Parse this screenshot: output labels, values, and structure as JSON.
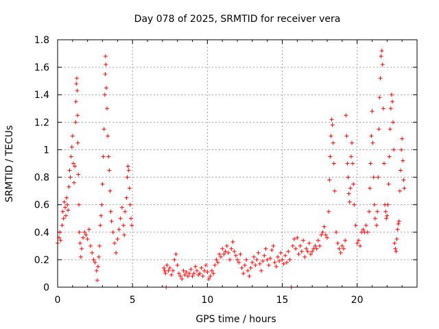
{
  "chart_data": {
    "type": "scatter",
    "title": "Day 078 of 2025, SRMTID for receiver vera",
    "xlabel": "GPS time / hours",
    "ylabel": "SRMTID / TECUs",
    "xlim": [
      0,
      24
    ],
    "ylim": [
      0,
      1.8
    ],
    "x_ticks": [
      0,
      5,
      10,
      15,
      20
    ],
    "x_tick_labels": [
      "0",
      "5",
      "10",
      "15",
      "20"
    ],
    "y_ticks": [
      0,
      0.2,
      0.4,
      0.6,
      0.8,
      1.0,
      1.2,
      1.4,
      1.6,
      1.8
    ],
    "y_tick_labels": [
      "0",
      "0.2",
      "0.4",
      "0.6",
      "0.8",
      "1",
      "1.2",
      "1.4",
      "1.6",
      "1.8"
    ],
    "grid": true,
    "marker": "+",
    "marker_color": "#ff0000",
    "series": [
      {
        "name": "SRMTID",
        "points": [
          [
            0.0,
            0.32
          ],
          [
            0.1,
            0.36
          ],
          [
            0.15,
            0.4
          ],
          [
            0.2,
            0.34
          ],
          [
            0.3,
            0.45
          ],
          [
            0.35,
            0.55
          ],
          [
            0.4,
            0.5
          ],
          [
            0.45,
            0.62
          ],
          [
            0.5,
            0.58
          ],
          [
            0.55,
            0.52
          ],
          [
            0.6,
            0.65
          ],
          [
            0.65,
            0.6
          ],
          [
            0.7,
            0.56
          ],
          [
            0.75,
            0.73
          ],
          [
            0.8,
            0.85
          ],
          [
            0.85,
            0.8
          ],
          [
            0.9,
            0.95
          ],
          [
            0.95,
            1.02
          ],
          [
            1.0,
            1.1
          ],
          [
            1.05,
            0.9
          ],
          [
            1.1,
            0.76
          ],
          [
            1.15,
            0.88
          ],
          [
            1.2,
            1.2
          ],
          [
            1.22,
            1.35
          ],
          [
            1.25,
            1.48
          ],
          [
            1.28,
            1.52
          ],
          [
            1.3,
            1.43
          ],
          [
            1.33,
            1.25
          ],
          [
            1.35,
            1.05
          ],
          [
            1.38,
            0.82
          ],
          [
            1.42,
            0.6
          ],
          [
            1.45,
            0.4
          ],
          [
            1.5,
            0.32
          ],
          [
            1.55,
            0.22
          ],
          [
            1.6,
            0.28
          ],
          [
            1.7,
            0.36
          ],
          [
            1.8,
            0.4
          ],
          [
            1.9,
            0.38
          ],
          [
            2.0,
            0.35
          ],
          [
            2.1,
            0.42
          ],
          [
            2.2,
            0.3
          ],
          [
            2.3,
            0.25
          ],
          [
            2.4,
            0.2
          ],
          [
            2.5,
            0.18
          ],
          [
            2.6,
            0.12
          ],
          [
            2.65,
            0.05
          ],
          [
            2.7,
            0.15
          ],
          [
            2.75,
            0.22
          ],
          [
            2.8,
            0.3
          ],
          [
            2.85,
            0.45
          ],
          [
            2.9,
            0.52
          ],
          [
            2.95,
            0.6
          ],
          [
            3.0,
            0.75
          ],
          [
            3.05,
            0.95
          ],
          [
            3.1,
            1.15
          ],
          [
            3.15,
            1.4
          ],
          [
            3.18,
            1.55
          ],
          [
            3.2,
            1.68
          ],
          [
            3.22,
            1.62
          ],
          [
            3.25,
            1.45
          ],
          [
            3.3,
            1.3
          ],
          [
            3.35,
            1.1
          ],
          [
            3.4,
            0.95
          ],
          [
            3.45,
            0.85
          ],
          [
            3.5,
            0.7
          ],
          [
            3.55,
            0.55
          ],
          [
            3.6,
            0.48
          ],
          [
            3.7,
            0.4
          ],
          [
            3.8,
            0.32
          ],
          [
            3.9,
            0.25
          ],
          [
            4.0,
            0.35
          ],
          [
            4.1,
            0.42
          ],
          [
            4.2,
            0.5
          ],
          [
            4.3,
            0.58
          ],
          [
            4.4,
            0.45
          ],
          [
            4.45,
            0.38
          ],
          [
            4.5,
            0.55
          ],
          [
            4.6,
            0.65
          ],
          [
            4.65,
            0.8
          ],
          [
            4.7,
            0.88
          ],
          [
            4.75,
            0.85
          ],
          [
            4.8,
            0.72
          ],
          [
            4.85,
            0.6
          ],
          [
            4.9,
            0.5
          ],
          [
            4.95,
            0.45
          ],
          [
            7.1,
            0.14
          ],
          [
            7.15,
            0.12
          ],
          [
            7.2,
            0.1
          ],
          [
            7.25,
            0.0
          ],
          [
            7.3,
            0.16
          ],
          [
            7.4,
            0.12
          ],
          [
            7.5,
            0.14
          ],
          [
            7.6,
            0.09
          ],
          [
            7.7,
            0.12
          ],
          [
            7.8,
            0.2
          ],
          [
            7.9,
            0.24
          ],
          [
            8.0,
            0.16
          ],
          [
            8.1,
            0.1
          ],
          [
            8.2,
            0.08
          ],
          [
            8.3,
            0.06
          ],
          [
            8.4,
            0.12
          ],
          [
            8.5,
            0.09
          ],
          [
            8.6,
            0.11
          ],
          [
            8.7,
            0.08
          ],
          [
            8.8,
            0.1
          ],
          [
            8.9,
            0.13
          ],
          [
            9.0,
            0.08
          ],
          [
            9.1,
            0.1
          ],
          [
            9.2,
            0.15
          ],
          [
            9.3,
            0.12
          ],
          [
            9.4,
            0.09
          ],
          [
            9.5,
            0.1
          ],
          [
            9.6,
            0.14
          ],
          [
            9.7,
            0.08
          ],
          [
            9.8,
            0.12
          ],
          [
            9.9,
            0.16
          ],
          [
            10.0,
            0.11
          ],
          [
            10.1,
            0.06
          ],
          [
            10.2,
            0.08
          ],
          [
            10.3,
            0.12
          ],
          [
            10.4,
            0.1
          ],
          [
            10.5,
            0.16
          ],
          [
            10.6,
            0.2
          ],
          [
            10.7,
            0.18
          ],
          [
            10.8,
            0.24
          ],
          [
            10.9,
            0.22
          ],
          [
            11.0,
            0.28
          ],
          [
            11.1,
            0.24
          ],
          [
            11.2,
            0.26
          ],
          [
            11.3,
            0.3
          ],
          [
            11.4,
            0.25
          ],
          [
            11.5,
            0.2
          ],
          [
            11.6,
            0.28
          ],
          [
            11.7,
            0.33
          ],
          [
            11.8,
            0.26
          ],
          [
            11.9,
            0.23
          ],
          [
            12.0,
            0.2
          ],
          [
            12.1,
            0.18
          ],
          [
            12.2,
            0.24
          ],
          [
            12.3,
            0.14
          ],
          [
            12.4,
            0.1
          ],
          [
            12.5,
            0.16
          ],
          [
            12.6,
            0.2
          ],
          [
            12.7,
            0.12
          ],
          [
            12.8,
            0.08
          ],
          [
            12.9,
            0.14
          ],
          [
            13.0,
            0.18
          ],
          [
            13.1,
            0.22
          ],
          [
            13.2,
            0.16
          ],
          [
            13.3,
            0.2
          ],
          [
            13.4,
            0.25
          ],
          [
            13.5,
            0.17
          ],
          [
            13.6,
            0.12
          ],
          [
            13.7,
            0.19
          ],
          [
            13.8,
            0.23
          ],
          [
            13.9,
            0.28
          ],
          [
            14.0,
            0.2
          ],
          [
            14.1,
            0.16
          ],
          [
            14.2,
            0.21
          ],
          [
            14.3,
            0.27
          ],
          [
            14.4,
            0.3
          ],
          [
            14.5,
            0.18
          ],
          [
            14.6,
            0.15
          ],
          [
            14.7,
            0.22
          ],
          [
            14.8,
            0.19
          ],
          [
            14.9,
            0.25
          ],
          [
            15.0,
            0.2
          ],
          [
            15.1,
            0.17
          ],
          [
            15.2,
            0.23
          ],
          [
            15.3,
            0.18
          ],
          [
            15.4,
            0.26
          ],
          [
            15.5,
            0.2
          ],
          [
            15.6,
            0.0
          ],
          [
            15.7,
            0.3
          ],
          [
            15.8,
            0.35
          ],
          [
            15.9,
            0.28
          ],
          [
            16.0,
            0.36
          ],
          [
            16.1,
            0.24
          ],
          [
            16.2,
            0.3
          ],
          [
            16.3,
            0.26
          ],
          [
            16.4,
            0.34
          ],
          [
            16.5,
            0.22
          ],
          [
            16.6,
            0.28
          ],
          [
            16.7,
            0.26
          ],
          [
            16.8,
            0.32
          ],
          [
            16.9,
            0.24
          ],
          [
            17.0,
            0.26
          ],
          [
            17.1,
            0.28
          ],
          [
            17.2,
            0.3
          ],
          [
            17.3,
            0.28
          ],
          [
            17.4,
            0.34
          ],
          [
            17.5,
            0.3
          ],
          [
            17.6,
            0.38
          ],
          [
            17.7,
            0.4
          ],
          [
            17.8,
            0.44
          ],
          [
            17.9,
            0.38
          ],
          [
            18.0,
            0.36
          ],
          [
            18.1,
            0.55
          ],
          [
            18.15,
            0.78
          ],
          [
            18.2,
            0.95
          ],
          [
            18.25,
            1.1
          ],
          [
            18.3,
            1.22
          ],
          [
            18.35,
            1.18
          ],
          [
            18.4,
            1.05
          ],
          [
            18.45,
            0.9
          ],
          [
            18.5,
            0.7
          ],
          [
            18.6,
            0.4
          ],
          [
            18.7,
            0.32
          ],
          [
            18.8,
            0.28
          ],
          [
            18.9,
            0.25
          ],
          [
            19.0,
            0.3
          ],
          [
            19.1,
            0.28
          ],
          [
            19.2,
            0.34
          ],
          [
            19.25,
            1.25
          ],
          [
            19.3,
            1.1
          ],
          [
            19.35,
            0.9
          ],
          [
            19.4,
            0.8
          ],
          [
            19.45,
            0.68
          ],
          [
            19.5,
            0.62
          ],
          [
            19.55,
            0.72
          ],
          [
            19.6,
            0.95
          ],
          [
            19.65,
            1.05
          ],
          [
            19.7,
            0.9
          ],
          [
            19.75,
            0.75
          ],
          [
            19.8,
            0.6
          ],
          [
            19.9,
            0.45
          ],
          [
            20.0,
            0.32
          ],
          [
            20.1,
            0.34
          ],
          [
            20.2,
            0.3
          ],
          [
            20.3,
            0.4
          ],
          [
            20.4,
            0.42
          ],
          [
            20.5,
            0.4
          ],
          [
            20.6,
            0.45
          ],
          [
            20.7,
            0.4
          ],
          [
            20.8,
            0.55
          ],
          [
            20.85,
            0.72
          ],
          [
            20.9,
            0.9
          ],
          [
            20.95,
            1.1
          ],
          [
            21.0,
            1.28
          ],
          [
            21.05,
            1.05
          ],
          [
            21.1,
            0.8
          ],
          [
            21.15,
            0.6
          ],
          [
            21.2,
            0.5
          ],
          [
            21.3,
            0.45
          ],
          [
            21.35,
            0.55
          ],
          [
            21.4,
            0.8
          ],
          [
            21.45,
            1.15
          ],
          [
            21.5,
            1.38
          ],
          [
            21.55,
            1.52
          ],
          [
            21.6,
            1.68
          ],
          [
            21.65,
            1.72
          ],
          [
            21.7,
            1.62
          ],
          [
            21.75,
            1.3
          ],
          [
            21.8,
            0.9
          ],
          [
            21.85,
            0.6
          ],
          [
            21.9,
            0.55
          ],
          [
            21.95,
            0.5
          ],
          [
            22.0,
            0.52
          ],
          [
            22.05,
            0.6
          ],
          [
            22.1,
            0.75
          ],
          [
            22.15,
            0.95
          ],
          [
            22.2,
            1.15
          ],
          [
            22.25,
            1.3
          ],
          [
            22.3,
            1.4
          ],
          [
            22.35,
            1.35
          ],
          [
            22.4,
            1.2
          ],
          [
            22.45,
            1.0
          ],
          [
            22.5,
            0.32
          ],
          [
            22.55,
            0.28
          ],
          [
            22.6,
            0.26
          ],
          [
            22.65,
            0.35
          ],
          [
            22.7,
            0.42
          ],
          [
            22.75,
            0.46
          ],
          [
            22.8,
            0.48
          ],
          [
            22.85,
            0.7
          ],
          [
            22.9,
            0.85
          ],
          [
            22.95,
            1.0
          ],
          [
            23.0,
            1.08
          ],
          [
            23.05,
            0.92
          ],
          [
            23.1,
            0.78
          ],
          [
            23.15,
            0.72
          ]
        ]
      }
    ]
  }
}
